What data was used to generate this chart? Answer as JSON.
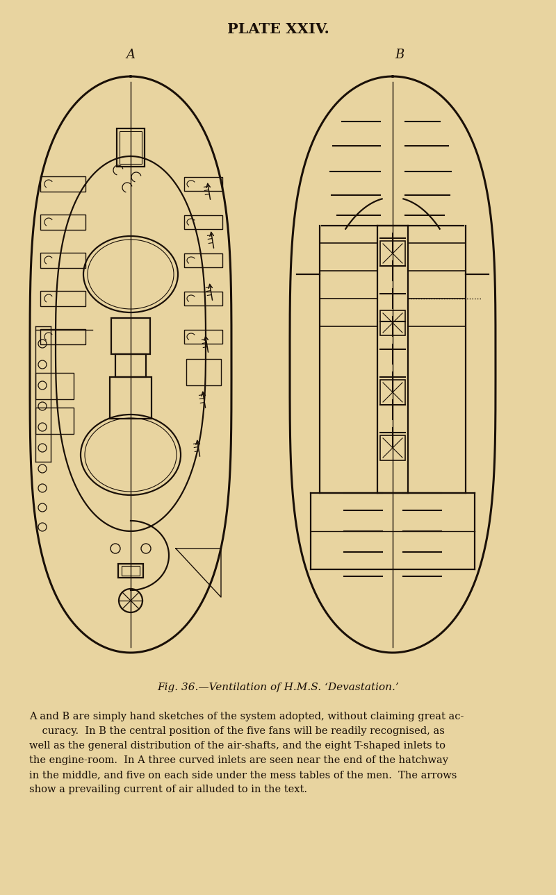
{
  "bg_color": "#e8d4a0",
  "line_color": "#1a1008",
  "title": "PLATE XXIV.",
  "label_A": "A",
  "label_B": "B",
  "fig_caption": "Fig. 36.—Ventilation of H.M.S. ‘Devastation.’",
  "body_text_lines": [
    "A and B are simply hand sketches of the system adopted, without claiming great ac-",
    "    curacy.  In B the central position of the five fans will be readily recognised, as",
    "well as the general distribution of the air-shafts, and the eight T-shaped inlets to",
    "the engine-room.  In A three curved inlets are seen near the end of the hatchway",
    "in the middle, and five on each side under the mess tables of the men.  The arrows",
    "show a prevailing current of air alluded to in the text."
  ],
  "figsize": [
    8.0,
    12.89
  ],
  "dpi": 100
}
